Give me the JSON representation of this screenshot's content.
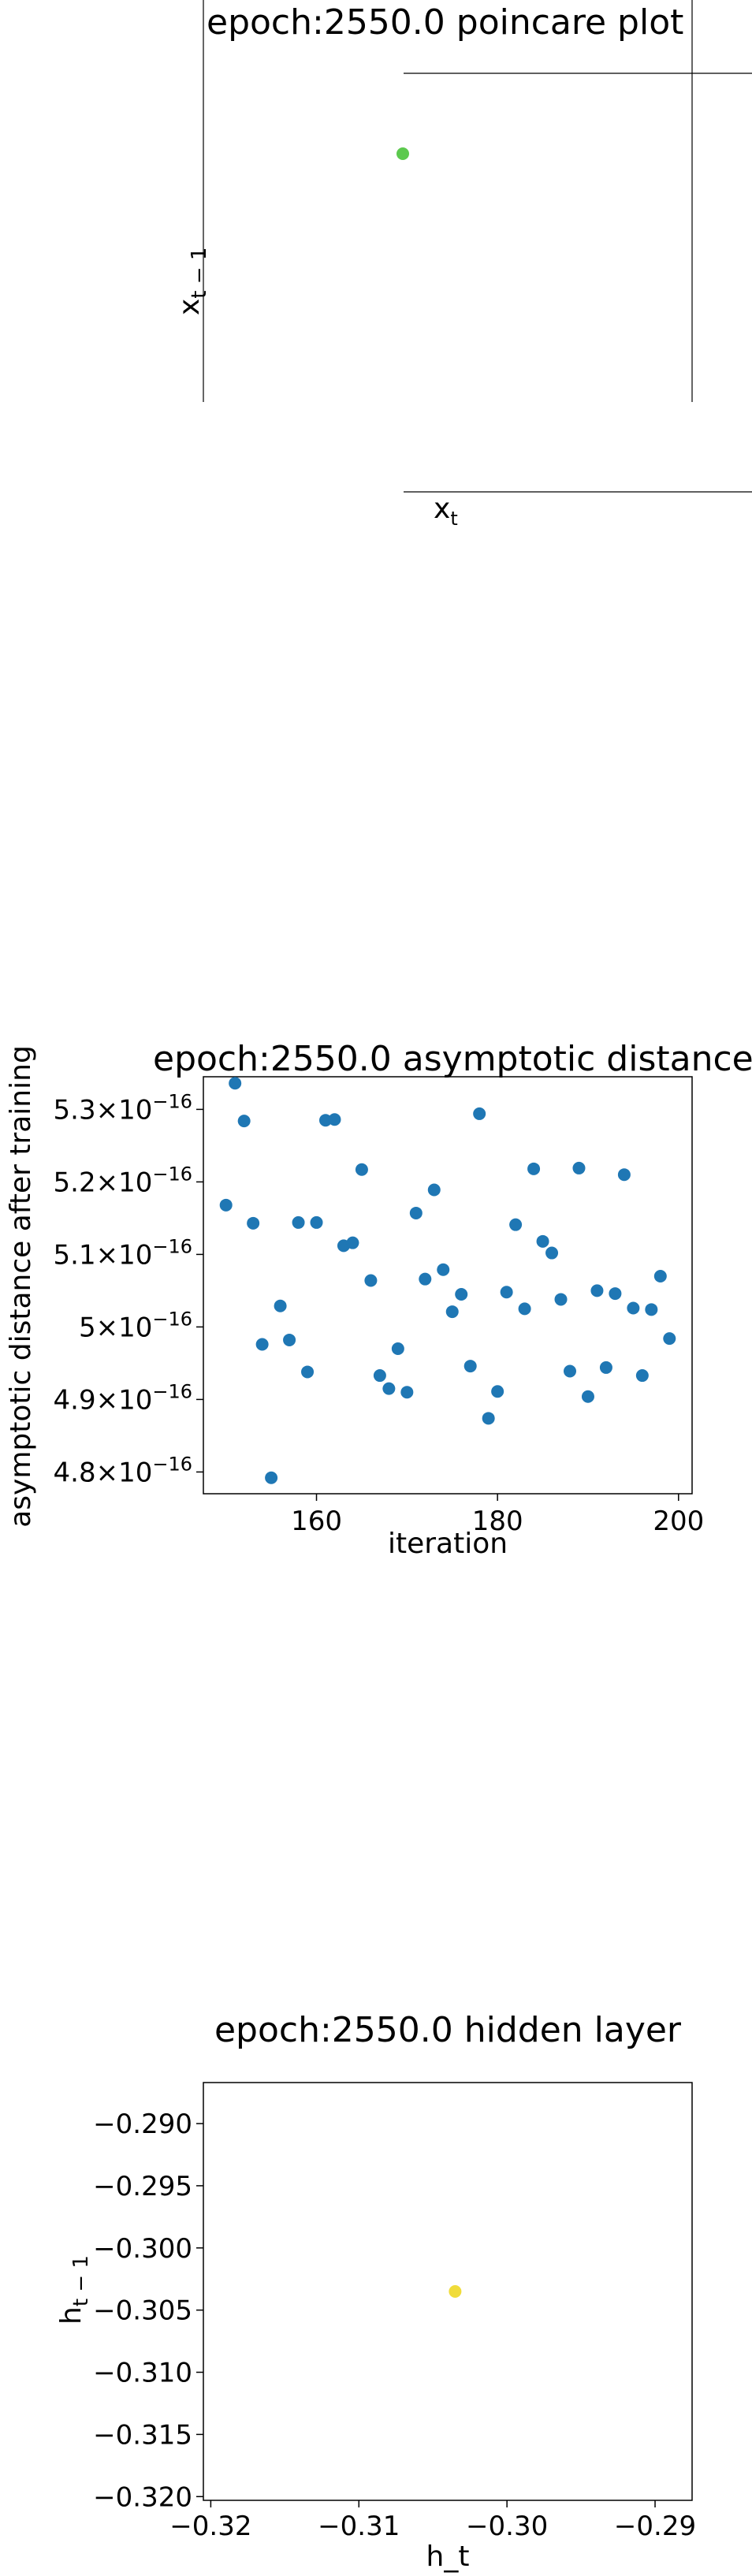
{
  "chart_data": [
    {
      "type": "scatter",
      "title": "epoch:2550.0 poincare plot",
      "xlabel": "x_t",
      "ylabel": "x_{t-1}",
      "series": [
        {
          "x": [
            0.0
          ],
          "y": [
            0.0
          ],
          "color": "#5cc94e"
        }
      ],
      "grid": false
    },
    {
      "type": "scatter",
      "title": "epoch:2550.0 asymptotic distance",
      "xlabel": "iteration",
      "ylabel": "asymptotic distance after training",
      "xlim": [
        147.5,
        201.5
      ],
      "ylim": [
        4.77e-16,
        5.345e-16
      ],
      "x_ticks": [
        "160",
        "180",
        "200"
      ],
      "y_ticks": [
        {
          "mant": "4.8",
          "exp": "−16"
        },
        {
          "mant": "4.9",
          "exp": "−16"
        },
        {
          "mant": "5",
          "exp": "−16"
        },
        {
          "mant": "5.1",
          "exp": "−16"
        },
        {
          "mant": "5.2",
          "exp": "−16"
        },
        {
          "mant": "5.3",
          "exp": "−16"
        }
      ],
      "color": "#1f77b4",
      "series": [
        {
          "x": [
            150,
            151,
            152,
            153,
            154,
            155,
            156,
            157,
            158,
            159,
            160,
            161,
            162,
            163,
            164,
            165,
            166,
            167,
            168,
            169,
            170,
            171,
            172,
            173,
            174,
            175,
            176,
            177,
            178,
            179,
            180,
            181,
            182,
            183,
            184,
            185,
            186,
            187,
            188,
            189,
            190,
            191,
            192,
            193,
            194,
            195,
            196,
            197,
            198,
            199
          ],
          "y": [
            5.168,
            5.336,
            5.284,
            5.143,
            4.976,
            4.792,
            5.029,
            4.982,
            5.144,
            4.938,
            5.144,
            5.285,
            5.286,
            5.112,
            5.116,
            5.217,
            5.064,
            4.933,
            4.915,
            4.97,
            4.91,
            5.157,
            5.066,
            5.189,
            5.079,
            5.021,
            5.045,
            4.946,
            5.294,
            4.874,
            4.911,
            5.048,
            5.141,
            5.025,
            5.218,
            5.118,
            5.102,
            5.038,
            4.939,
            5.219,
            4.904,
            5.05,
            4.944,
            5.046,
            5.21,
            5.026,
            4.933,
            5.024,
            5.07,
            4.984
          ]
        }
      ],
      "y_scale": "1e-16"
    },
    {
      "type": "scatter",
      "title": "epoch:2550.0 hidden layer",
      "xlabel": "h_t",
      "ylabel": "h_{t-1}",
      "xlim": [
        -0.3205,
        -0.2875
      ],
      "ylim": [
        -0.3203,
        -0.2867
      ],
      "x_ticks": [
        "−0.32",
        "−0.31",
        "−0.30",
        "−0.29"
      ],
      "y_ticks": [
        "−0.290",
        "−0.295",
        "−0.300",
        "−0.305",
        "−0.310",
        "−0.315",
        "−0.320"
      ],
      "series": [
        {
          "x": [
            -0.3035
          ],
          "y": [
            -0.3035
          ],
          "color": "#f0dc3a"
        }
      ],
      "grid": false
    }
  ]
}
